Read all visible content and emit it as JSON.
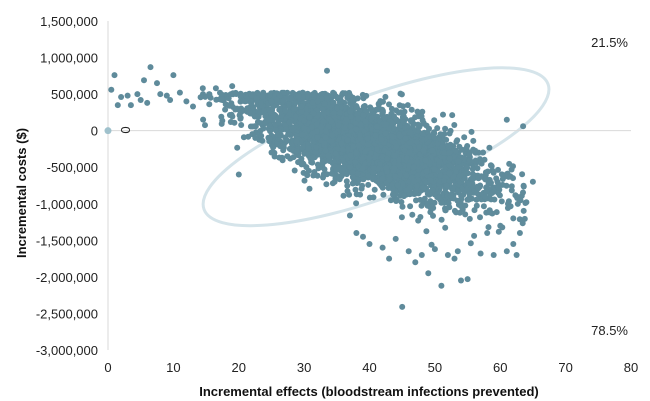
{
  "chart_data": {
    "type": "scatter",
    "title": "",
    "xlabel": "Incremental effects (bloodstream infections prevented)",
    "ylabel": "Incremental costs ($)",
    "xlim": [
      0,
      80
    ],
    "ylim": [
      -3000000,
      1500000
    ],
    "x_ticks": [
      "0",
      "10",
      "20",
      "30",
      "40",
      "50",
      "60",
      "70",
      "80"
    ],
    "y_ticks": [
      "1,500,000",
      "1,000,000",
      "500,000",
      "0",
      "-500,000",
      "-1,000,000",
      "-1,500,000",
      "-2,000,000",
      "-2,500,000",
      "-3,000,000"
    ],
    "grid": false,
    "colors": {
      "points": "#5f8b9b",
      "ellipse": "#d5e4ea",
      "origin": "#9fc1cc"
    },
    "annotations": {
      "origin_label": "0",
      "upper_right_pct": "21.5%",
      "lower_right_pct": "78.5%"
    },
    "confidence_ellipse": {
      "center": [
        41,
        -220000
      ],
      "semi_axis_x": 28,
      "semi_axis_y": 700000,
      "rotation_deg": -20
    },
    "cloud": {
      "count": 4200,
      "center": [
        40,
        -200000
      ],
      "sd_x": 8.5,
      "sd_y": 260000,
      "slope_per_effect": -30000
    },
    "origin_point": [
      0,
      0
    ],
    "outliers": [
      [
        0.5,
        560000
      ],
      [
        1,
        760000
      ],
      [
        1.5,
        350000
      ],
      [
        2,
        460000
      ],
      [
        3,
        480000
      ],
      [
        3.5,
        350000
      ],
      [
        4.5,
        500000
      ],
      [
        5,
        420000
      ],
      [
        5.5,
        690000
      ],
      [
        6,
        380000
      ],
      [
        6.5,
        870000
      ],
      [
        7.5,
        650000
      ],
      [
        8,
        500000
      ],
      [
        9,
        480000
      ],
      [
        9.5,
        420000
      ],
      [
        10,
        760000
      ],
      [
        11,
        520000
      ],
      [
        12,
        400000
      ],
      [
        13,
        330000
      ],
      [
        14.5,
        580000
      ],
      [
        15.5,
        360000
      ],
      [
        16.5,
        580000
      ],
      [
        18,
        360000
      ],
      [
        19,
        610000
      ],
      [
        20,
        -600000
      ],
      [
        21,
        400000
      ],
      [
        33.5,
        820000
      ],
      [
        38,
        -1400000
      ],
      [
        39,
        -1450000
      ],
      [
        40,
        -1550000
      ],
      [
        42,
        -1600000
      ],
      [
        43,
        -1750000
      ],
      [
        44,
        -1480000
      ],
      [
        45,
        -2410000
      ],
      [
        46,
        -1650000
      ],
      [
        47,
        -1800000
      ],
      [
        48,
        -1700000
      ],
      [
        49,
        -1950000
      ],
      [
        49.5,
        -1560000
      ],
      [
        50,
        -1620000
      ],
      [
        51,
        -2120000
      ],
      [
        52,
        -1700000
      ],
      [
        53,
        -1750000
      ],
      [
        53.5,
        -1650000
      ],
      [
        54,
        -2050000
      ],
      [
        55,
        -2030000
      ],
      [
        55.5,
        -1540000
      ],
      [
        56,
        -1440000
      ],
      [
        57,
        -1680000
      ],
      [
        58,
        -1400000
      ],
      [
        59,
        -1700000
      ],
      [
        60,
        -1300000
      ],
      [
        61,
        -1650000
      ],
      [
        62,
        -1550000
      ],
      [
        62.5,
        -1700000
      ],
      [
        63,
        -1400000
      ],
      [
        63.5,
        60000
      ],
      [
        64,
        -980000
      ],
      [
        65,
        -700000
      ],
      [
        61,
        150000
      ],
      [
        62,
        -1200000
      ]
    ]
  }
}
